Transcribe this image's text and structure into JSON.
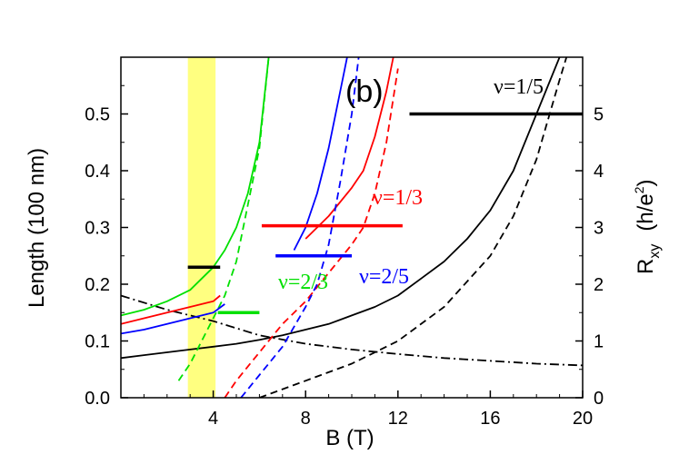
{
  "chart_data": {
    "type": "line",
    "panel_label": "(b)",
    "xlabel": "B (T)",
    "ylabel_left": "Length (100 nm)",
    "ylabel_right_main": "R",
    "ylabel_right_sub": "xy",
    "ylabel_right_unit": "(h/e",
    "ylabel_right_sup": "2",
    "ylabel_right_close": ")",
    "x_ticks": [
      {
        "value": 4,
        "label": "4"
      },
      {
        "value": 8,
        "label": "8"
      },
      {
        "value": 12,
        "label": "12"
      },
      {
        "value": 16,
        "label": "16"
      },
      {
        "value": 20,
        "label": "20"
      }
    ],
    "y_left_range": [
      0,
      0.6
    ],
    "y_left_ticks": [
      "0.0",
      "0.1",
      "0.2",
      "0.3",
      "0.4",
      "0.5"
    ],
    "y_right_range": [
      0,
      6
    ],
    "y_right_ticks": [
      "0",
      "1",
      "2",
      "3",
      "4",
      "5"
    ],
    "shaded_band": {
      "x_from": 2.9,
      "x_to": 4.1,
      "color": "#ffff80"
    },
    "colors": {
      "black": "#000000",
      "red": "#ff0000",
      "green": "#00e000",
      "blue": "#0000ff"
    },
    "series": [
      {
        "color": "black",
        "style": "solid",
        "points": [
          [
            0,
            0.07
          ],
          [
            1,
            0.075
          ],
          [
            2,
            0.08
          ],
          [
            3,
            0.085
          ],
          [
            4,
            0.09
          ],
          [
            5,
            0.095
          ],
          [
            6,
            0.102
          ],
          [
            7,
            0.11
          ],
          [
            8,
            0.12
          ],
          [
            9,
            0.13
          ],
          [
            10,
            0.145
          ],
          [
            11,
            0.16
          ],
          [
            12,
            0.18
          ],
          [
            13,
            0.21
          ],
          [
            14,
            0.24
          ],
          [
            15,
            0.28
          ],
          [
            16,
            0.33
          ],
          [
            17,
            0.4
          ],
          [
            18,
            0.5
          ],
          [
            19,
            0.6
          ]
        ]
      },
      {
        "color": "black",
        "style": "dashed",
        "points": [
          [
            6,
            0
          ],
          [
            8,
            0.03
          ],
          [
            10,
            0.06
          ],
          [
            12,
            0.1
          ],
          [
            14,
            0.16
          ],
          [
            16,
            0.25
          ],
          [
            17,
            0.32
          ],
          [
            18,
            0.42
          ],
          [
            19,
            0.56
          ],
          [
            19.3,
            0.6
          ]
        ]
      },
      {
        "color": "black",
        "style": "dashdot",
        "points": [
          [
            0,
            0.18
          ],
          [
            2,
            0.155
          ],
          [
            4,
            0.135
          ],
          [
            6,
            0.11
          ],
          [
            8,
            0.095
          ],
          [
            10,
            0.085
          ],
          [
            12,
            0.077
          ],
          [
            14,
            0.07
          ],
          [
            16,
            0.065
          ],
          [
            18,
            0.06
          ],
          [
            20,
            0.057
          ]
        ]
      },
      {
        "color": "green",
        "style": "solid",
        "points": [
          [
            0,
            0.145
          ],
          [
            1,
            0.155
          ],
          [
            2,
            0.17
          ],
          [
            3,
            0.19
          ],
          [
            4,
            0.23
          ],
          [
            4.5,
            0.26
          ],
          [
            5,
            0.3
          ],
          [
            5.5,
            0.36
          ],
          [
            6,
            0.45
          ],
          [
            6.4,
            0.6
          ]
        ]
      },
      {
        "color": "green",
        "style": "dashed",
        "points": [
          [
            2.5,
            0.03
          ],
          [
            3,
            0.06
          ],
          [
            3.5,
            0.1
          ],
          [
            4,
            0.14
          ],
          [
            4.5,
            0.18
          ],
          [
            5,
            0.24
          ],
          [
            5.5,
            0.34
          ],
          [
            6,
            0.44
          ],
          [
            6.4,
            0.6
          ]
        ]
      },
      {
        "color": "red",
        "style": "solid",
        "points": [
          [
            0,
            0.13
          ],
          [
            1,
            0.14
          ],
          [
            2,
            0.15
          ],
          [
            3,
            0.16
          ],
          [
            4,
            0.17
          ],
          [
            4.3,
            0.18
          ]
        ]
      },
      {
        "color": "red",
        "style": "solid",
        "points": [
          [
            8,
            0.28
          ],
          [
            9,
            0.32
          ],
          [
            10,
            0.37
          ],
          [
            10.5,
            0.4
          ],
          [
            11,
            0.46
          ],
          [
            11.5,
            0.54
          ],
          [
            11.8,
            0.6
          ]
        ]
      },
      {
        "color": "red",
        "style": "dashed",
        "points": [
          [
            4.5,
            0
          ],
          [
            5,
            0.03
          ],
          [
            6,
            0.08
          ],
          [
            7,
            0.13
          ],
          [
            8,
            0.17
          ],
          [
            9,
            0.22
          ],
          [
            10,
            0.27
          ],
          [
            10.5,
            0.3
          ],
          [
            11,
            0.36
          ],
          [
            11.5,
            0.45
          ],
          [
            12,
            0.58
          ]
        ]
      },
      {
        "color": "blue",
        "style": "solid",
        "points": [
          [
            0,
            0.113
          ],
          [
            1,
            0.12
          ],
          [
            2,
            0.13
          ],
          [
            3,
            0.14
          ],
          [
            4,
            0.15
          ],
          [
            4.5,
            0.165
          ]
        ]
      },
      {
        "color": "blue",
        "style": "solid",
        "points": [
          [
            7.5,
            0.26
          ],
          [
            8,
            0.3
          ],
          [
            8.5,
            0.36
          ],
          [
            9,
            0.44
          ],
          [
            9.5,
            0.54
          ],
          [
            9.8,
            0.6
          ]
        ]
      },
      {
        "color": "blue",
        "style": "dashed",
        "points": [
          [
            5.2,
            0
          ],
          [
            6,
            0.04
          ],
          [
            7,
            0.09
          ],
          [
            8,
            0.16
          ],
          [
            8.5,
            0.2
          ],
          [
            9,
            0.27
          ],
          [
            9.5,
            0.38
          ],
          [
            10,
            0.5
          ],
          [
            10.3,
            0.6
          ]
        ]
      }
    ],
    "plateaus": [
      {
        "label": "ν=1/5",
        "color": "black",
        "x_from": 12.5,
        "x_to": 20,
        "y_right": 5
      },
      {
        "label": "ν=1/3",
        "color": "red",
        "x_from": 6.1,
        "x_to": 12.2,
        "y_right": 3.03
      },
      {
        "label": "ν=2/5",
        "color": "blue",
        "x_from": 6.7,
        "x_to": 10,
        "y_right": 2.5
      },
      {
        "label": "ν=2/3",
        "color": "green",
        "x_from": 4.2,
        "x_to": 6.0,
        "y_right": 1.5
      },
      {
        "label": "",
        "color": "black",
        "x_from": 2.9,
        "x_to": 4.3,
        "y_right": 2.3
      }
    ]
  }
}
